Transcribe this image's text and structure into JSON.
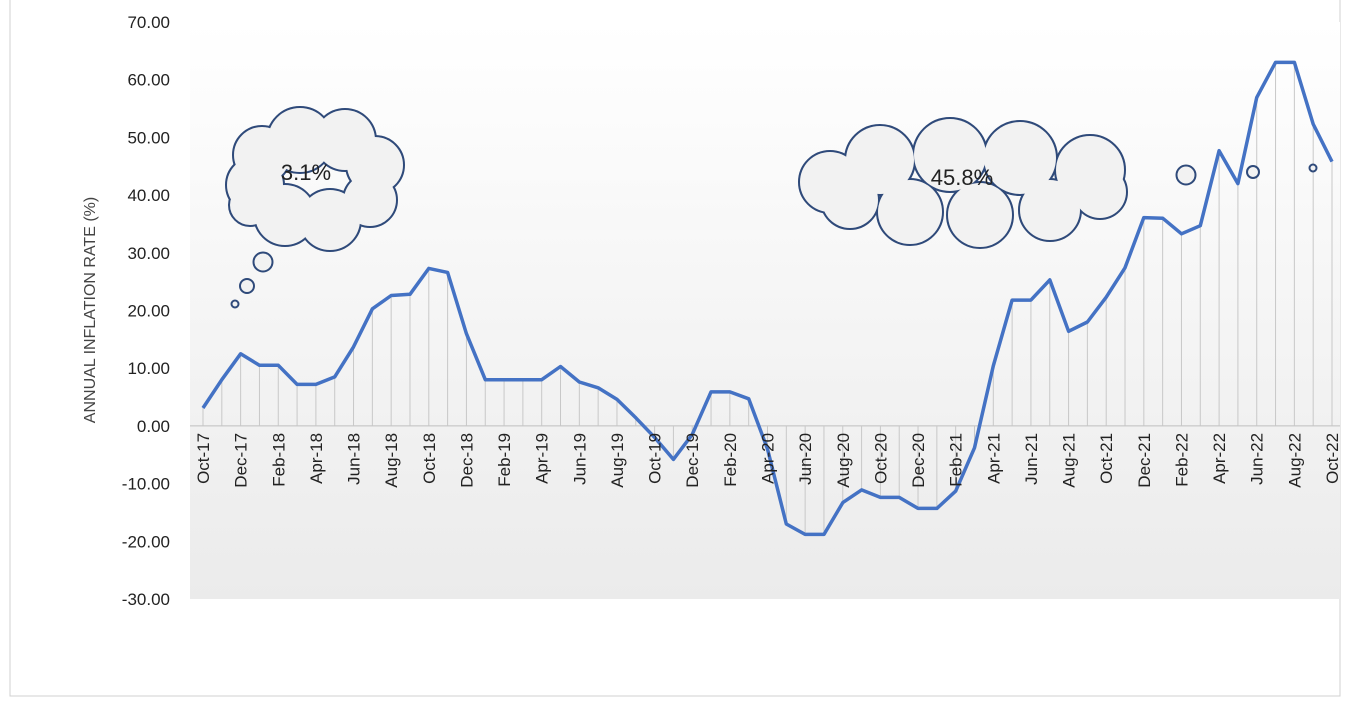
{
  "chart_data": {
    "type": "line",
    "y_axis_label": "ANNUAL INFLATION RATE (%)",
    "annotations": [
      "3.1%",
      "45.8%"
    ],
    "categories": [
      "Oct-17",
      null,
      "Dec-17",
      null,
      "Feb-18",
      null,
      "Apr-18",
      null,
      "Jun-18",
      null,
      "Aug-18",
      null,
      "Oct-18",
      null,
      "Dec-18",
      null,
      "Feb-19",
      null,
      "Apr-19",
      null,
      "Jun-19",
      null,
      "Aug-19",
      null,
      "Oct-19",
      null,
      "Dec-19",
      null,
      "Feb-20",
      null,
      "Apr-20",
      null,
      "Jun-20",
      null,
      "Aug-20",
      null,
      "Oct-20",
      null,
      "Dec-20",
      null,
      "Feb-21",
      null,
      "Apr-21",
      null,
      "Jun-21",
      null,
      "Aug-21",
      null,
      "Oct-21",
      null,
      "Dec-21",
      null,
      "Feb-22",
      null,
      "Apr-22",
      null,
      "Jun-22",
      null,
      "Aug-22",
      null,
      "Oct-22"
    ],
    "series": [
      {
        "name": "Annual inflation rate",
        "color": "#4472c4",
        "values": [
          3.1,
          8,
          12.5,
          10.5,
          10.5,
          7.2,
          7.2,
          8.5,
          13.7,
          20.3,
          22.6,
          22.8,
          27.3,
          26.6,
          16,
          8,
          8,
          8,
          8,
          10.3,
          7.6,
          6.6,
          4.6,
          1.4,
          -2,
          -5.8,
          -1.5,
          5.9,
          5.9,
          4.7,
          -4,
          -17,
          -18.8,
          -18.8,
          -13.3,
          -11.1,
          -12.4,
          -12.4,
          -14.3,
          -14.3,
          -11.3,
          -3.8,
          10.4,
          21.8,
          21.8,
          25.3,
          16.4,
          18,
          22.3,
          27.4,
          36.1,
          36,
          33.3,
          34.7,
          47.7,
          42,
          56.9,
          63,
          63,
          52.3,
          45.8
        ]
      }
    ],
    "ylim": [
      -30,
      70
    ],
    "yticks": [
      {
        "value": -30,
        "label": "-30.00"
      },
      {
        "value": -20,
        "label": "-20.00"
      },
      {
        "value": -10,
        "label": "-10.00"
      },
      {
        "value": 0,
        "label": "0.00"
      },
      {
        "value": 10,
        "label": "10.00"
      },
      {
        "value": 20,
        "label": "20.00"
      },
      {
        "value": 30,
        "label": "30.00"
      },
      {
        "value": 40,
        "label": "40.00"
      },
      {
        "value": 50,
        "label": "50.00"
      },
      {
        "value": 60,
        "label": "60.00"
      },
      {
        "value": 70,
        "label": "70.00"
      }
    ],
    "drop_lines": true
  }
}
